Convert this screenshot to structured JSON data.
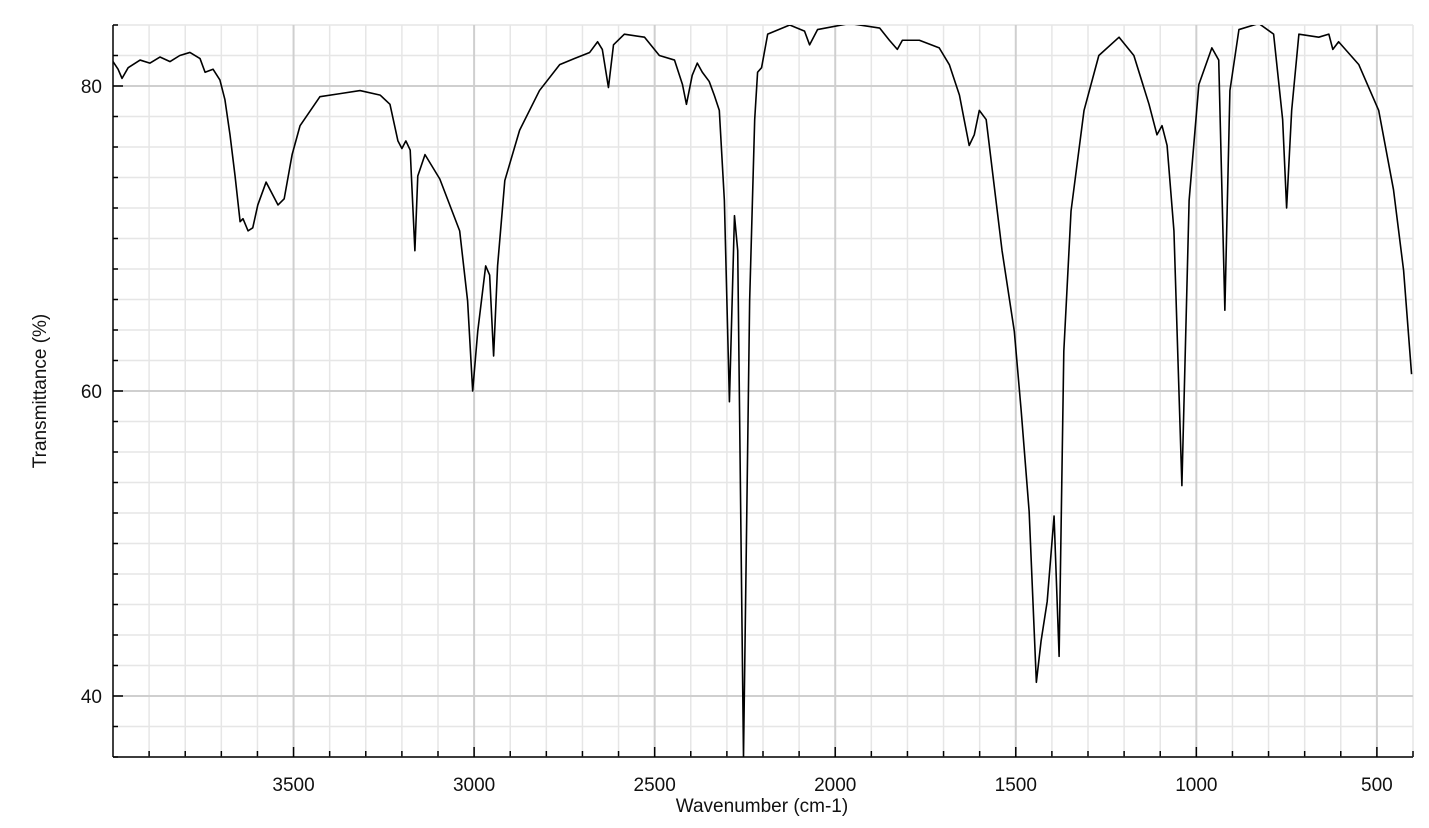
{
  "chart_data": {
    "type": "line",
    "xlabel": "Wavenumber (cm-1)",
    "ylabel": "Transmittance (%)",
    "x": [
      4000,
      3986,
      3975,
      3958,
      3925,
      3898,
      3870,
      3842,
      3815,
      3787,
      3759,
      3745,
      3723,
      3704,
      3690,
      3676,
      3662,
      3648,
      3640,
      3626,
      3613,
      3599,
      3576,
      3565,
      3543,
      3526,
      3504,
      3482,
      3427,
      3371,
      3316,
      3260,
      3233,
      3211,
      3200,
      3189,
      3177,
      3164,
      3156,
      3136,
      3095,
      3040,
      3018,
      3004,
      2990,
      2968,
      2957,
      2946,
      2935,
      2915,
      2874,
      2819,
      2763,
      2722,
      2680,
      2658,
      2645,
      2628,
      2614,
      2584,
      2528,
      2487,
      2445,
      2423,
      2412,
      2396,
      2382,
      2368,
      2349,
      2335,
      2321,
      2307,
      2293,
      2279,
      2270,
      2254,
      2237,
      2223,
      2215,
      2204,
      2187,
      2126,
      2085,
      2071,
      2049,
      1960,
      1877,
      1850,
      1828,
      1814,
      1767,
      1712,
      1684,
      1656,
      1643,
      1629,
      1615,
      1601,
      1582,
      1560,
      1538,
      1504,
      1485,
      1463,
      1443,
      1430,
      1413,
      1394,
      1380,
      1367,
      1347,
      1311,
      1270,
      1214,
      1173,
      1131,
      1109,
      1095,
      1081,
      1062,
      1040,
      1020,
      993,
      957,
      938,
      921,
      907,
      882,
      827,
      786,
      761,
      750,
      736,
      716,
      661,
      633,
      622,
      606,
      550,
      495,
      454,
      426,
      404
    ],
    "values": [
      81.6,
      81.1,
      80.5,
      81.2,
      81.7,
      81.5,
      81.9,
      81.6,
      82.0,
      82.2,
      81.8,
      80.9,
      81.1,
      80.4,
      79.1,
      76.8,
      74.1,
      71.1,
      71.3,
      70.5,
      70.7,
      72.2,
      73.7,
      73.2,
      72.2,
      72.6,
      75.5,
      77.4,
      79.3,
      79.5,
      79.7,
      79.4,
      78.8,
      76.4,
      75.9,
      76.4,
      75.8,
      69.2,
      74.1,
      75.5,
      73.9,
      70.5,
      65.9,
      60.0,
      63.9,
      68.2,
      67.6,
      62.3,
      68.2,
      73.8,
      77.1,
      79.7,
      81.4,
      81.8,
      82.2,
      82.9,
      82.4,
      79.9,
      82.7,
      83.4,
      83.2,
      82.0,
      81.7,
      80.1,
      78.8,
      80.7,
      81.5,
      80.9,
      80.3,
      79.4,
      78.4,
      72.5,
      59.3,
      71.5,
      69.2,
      36,
      65.9,
      77.8,
      80.9,
      81.2,
      83.4,
      84.0,
      83.6,
      82.7,
      83.7,
      84.1,
      83.8,
      83.0,
      82.4,
      83.0,
      83.0,
      82.5,
      81.4,
      79.4,
      77.8,
      76.1,
      76.8,
      78.4,
      77.8,
      73.5,
      69.2,
      63.9,
      58.7,
      52.1,
      40.9,
      43.6,
      46.2,
      51.8,
      42.6,
      62.6,
      71.8,
      78.4,
      82.0,
      83.2,
      82.0,
      78.8,
      76.8,
      77.4,
      76.1,
      70.5,
      53.8,
      72.5,
      80.1,
      82.5,
      81.7,
      65.3,
      79.7,
      83.7,
      84.1,
      83.4,
      77.8,
      72.0,
      78.4,
      83.4,
      83.2,
      83.4,
      82.4,
      82.9,
      81.4,
      78.4,
      73.2,
      67.9,
      61.1
    ],
    "color": "#000000",
    "xlim": [
      4000,
      400
    ],
    "ylim": [
      36,
      84
    ],
    "xticks": [
      3500,
      3000,
      2500,
      2000,
      1500,
      1000,
      500
    ],
    "yticks": [
      40,
      60,
      80
    ],
    "xminorticks": [
      3900,
      3800,
      3700,
      3600,
      3400,
      3300,
      3200,
      3100,
      2900,
      2800,
      2700,
      2600,
      2400,
      2300,
      2200,
      2100,
      1900,
      1800,
      1700,
      1600,
      1400,
      1300,
      1200,
      1100,
      900,
      800,
      700,
      600,
      400
    ],
    "yminorticks": [
      36,
      38,
      42,
      44,
      46,
      48,
      50,
      52,
      54,
      56,
      58,
      62,
      64,
      66,
      68,
      70,
      72,
      74,
      76,
      78,
      82,
      84
    ],
    "grid": true
  }
}
